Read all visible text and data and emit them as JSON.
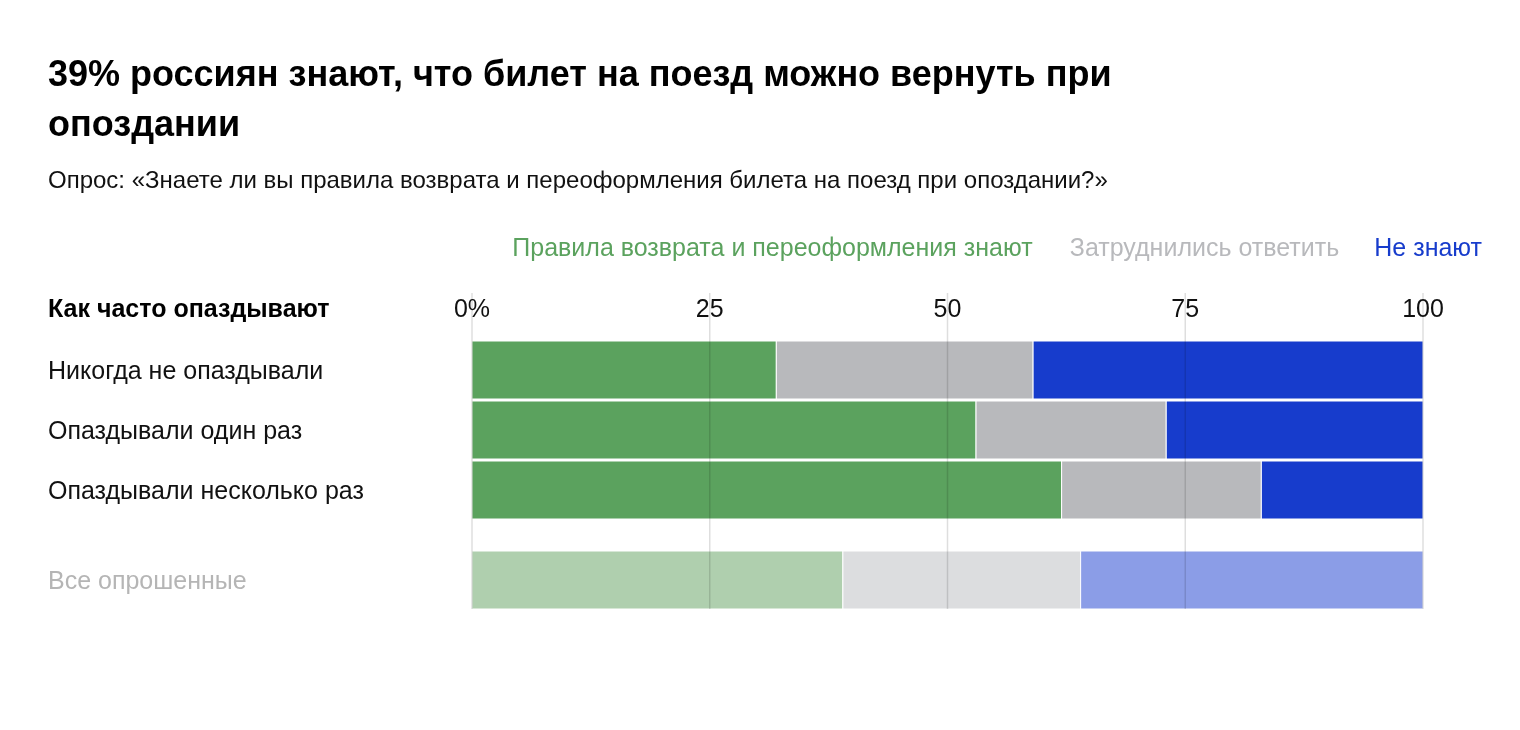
{
  "chart_data": {
    "type": "bar",
    "orientation": "horizontal",
    "stacked": true,
    "title": "39% россиян знают, что билет на поезд можно вернуть при опоздании",
    "subtitle": "Опрос: «Знаете ли вы правила возврата и переоформления билета на поезд при опоздании?»",
    "ylabel": "Как часто опаздывают",
    "categories": [
      "Никогда не опаздывали",
      "Опаздывали один раз",
      "Опаздывали несколько раз",
      "Все опрошенные"
    ],
    "series": [
      {
        "name": "Правила возврата и переоформления знают",
        "color": "#5ba25e",
        "colors": [
          "#5ba25e",
          "#5ba25e",
          "#5ba25e",
          "#afcfae"
        ],
        "values": [
          32,
          53,
          62,
          39
        ]
      },
      {
        "name": "Затруднились ответить",
        "color": "#b8b9bc",
        "colors": [
          "#b8b9bc",
          "#b8b9bc",
          "#b8b9bc",
          "#dcdddf"
        ],
        "values": [
          27,
          20,
          21,
          25
        ]
      },
      {
        "name": "Не знают",
        "color": "#173ccc",
        "colors": [
          "#173ccc",
          "#173ccc",
          "#173ccc",
          "#8b9de7"
        ],
        "values": [
          41,
          27,
          17,
          36
        ]
      }
    ],
    "xlim": [
      0,
      100
    ],
    "xticks": [
      {
        "value": 0,
        "label": "0%"
      },
      25,
      50,
      75,
      100
    ],
    "grid": "x",
    "legend": "top right"
  }
}
